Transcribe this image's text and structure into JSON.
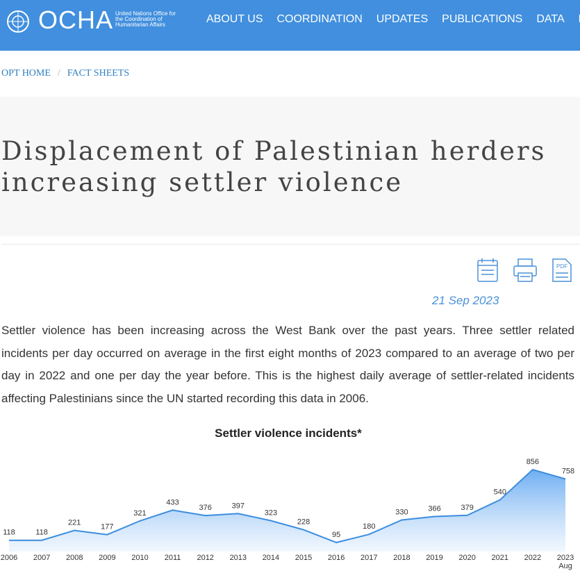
{
  "header": {
    "logo_text": "OCHA",
    "logo_subtitle": "United Nations Office for the Coordination of Humanitarian Affairs",
    "nav": [
      "ABOUT US",
      "COORDINATION",
      "UPDATES",
      "PUBLICATIONS",
      "DATA",
      "FUNDING"
    ]
  },
  "breadcrumb": [
    "OPT HOME",
    "FACT SHEETS"
  ],
  "article": {
    "title_lines": [
      "Displacement of Palestinian herders",
      "increasing settler violence"
    ],
    "date": "21 Sep 2023",
    "paragraph": "Settler violence has been increasing across the West Bank over the past years. Three settler related incidents per day occurred on average in the first eight months of 2023 compared to an average of two per day in 2022 and one per day the year before. This is the highest daily average of settler-related incidents affecting Palestinians since the UN started recording this data in 2006."
  },
  "chart_data": {
    "type": "area",
    "title": "Settler violence incidents*",
    "categories": [
      "2006",
      "2007",
      "2008",
      "2009",
      "2010",
      "2011",
      "2012",
      "2013",
      "2014",
      "2015",
      "2016",
      "2017",
      "2018",
      "2019",
      "2020",
      "2021",
      "2022",
      "2023 Aug"
    ],
    "values": [
      118,
      118,
      221,
      177,
      321,
      433,
      376,
      397,
      323,
      228,
      95,
      180,
      330,
      366,
      379,
      540,
      856,
      758
    ],
    "color": "#3b8de0"
  }
}
